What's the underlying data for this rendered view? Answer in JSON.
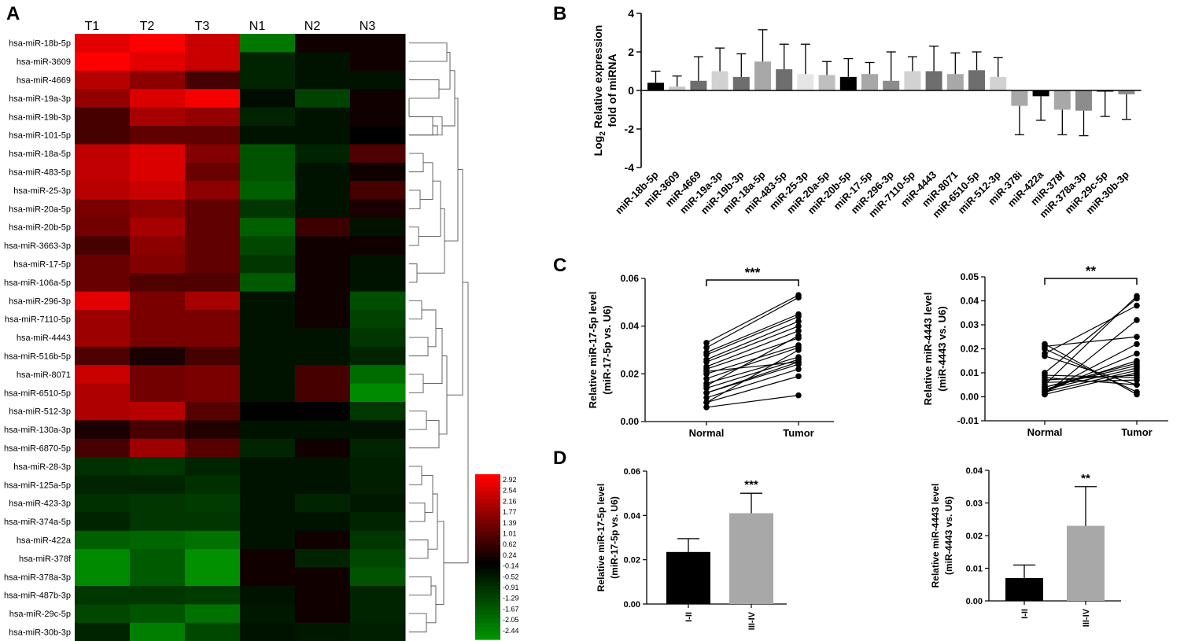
{
  "panel_labels": {
    "A": "A",
    "B": "B",
    "C": "C",
    "D": "D"
  },
  "chart_data": [
    {
      "panel": "A",
      "type": "heatmap",
      "columns": [
        "T1",
        "T2",
        "T3",
        "N1",
        "N2",
        "N3"
      ],
      "rows": [
        "hsa-miR-18b-5p",
        "hsa-miR-3609",
        "hsa-miR-4669",
        "hsa-miR-19a-3p",
        "hsa-miR-19b-3p",
        "hsa-miR-101-5p",
        "hsa-miR-18a-5p",
        "hsa-miR-483-5p",
        "hsa-miR-25-3p",
        "hsa-miR-20a-5p",
        "hsa-miR-20b-5p",
        "hsa-miR-3663-3p",
        "hsa-miR-17-5p",
        "hsa-miR-106a-5p",
        "hsa-miR-296-3p",
        "hsa-miR-7110-5p",
        "hsa-miR-4443",
        "hsa-miR-516b-5p",
        "hsa-miR-8071",
        "hsa-miR-6510-5p",
        "hsa-miR-512-3p",
        "hsa-miR-130a-3p",
        "hsa-miR-6870-5p",
        "hsa-miR-28-3p",
        "hsa-miR-125a-5p",
        "hsa-miR-423-3p",
        "hsa-miR-374a-5p",
        "hsa-miR-422a",
        "hsa-miR-378f",
        "hsa-miR-378a-3p",
        "hsa-miR-487b-3p",
        "hsa-miR-29c-5p",
        "hsa-miR-30b-3p"
      ],
      "values": [
        [
          2.6,
          2.9,
          2.3,
          -2.0,
          0.2,
          0.2
        ],
        [
          2.9,
          2.6,
          2.3,
          -0.6,
          -0.3,
          0.2
        ],
        [
          2.1,
          1.6,
          0.8,
          -0.6,
          -0.3,
          -0.3
        ],
        [
          1.7,
          2.5,
          2.8,
          -0.2,
          -1.1,
          0.2
        ],
        [
          0.8,
          1.9,
          1.7,
          -0.6,
          -0.3,
          0.2
        ],
        [
          0.8,
          1.1,
          1.1,
          -0.3,
          -0.3,
          0.0
        ],
        [
          2.2,
          2.5,
          1.5,
          -1.4,
          -0.6,
          0.9
        ],
        [
          2.2,
          2.5,
          1.2,
          -1.4,
          -0.3,
          0.2
        ],
        [
          2.1,
          2.3,
          1.6,
          -1.6,
          -0.3,
          0.8
        ],
        [
          1.4,
          1.6,
          1.1,
          -0.9,
          -0.3,
          0.3
        ],
        [
          1.3,
          1.9,
          1.1,
          -1.6,
          0.7,
          -0.3
        ],
        [
          0.8,
          1.6,
          1.1,
          -1.2,
          0.2,
          0.2
        ],
        [
          1.2,
          1.5,
          1.1,
          -0.9,
          0.2,
          -0.3
        ],
        [
          1.2,
          0.9,
          0.9,
          -1.5,
          0.2,
          -0.3
        ],
        [
          2.6,
          1.4,
          1.9,
          -0.3,
          0.2,
          -1.3
        ],
        [
          1.8,
          1.4,
          1.4,
          -0.3,
          0.2,
          -1.1
        ],
        [
          1.8,
          1.4,
          1.4,
          -0.3,
          -0.3,
          -0.9
        ],
        [
          0.9,
          0.3,
          0.8,
          -0.3,
          -0.3,
          -0.6
        ],
        [
          2.3,
          1.3,
          1.4,
          -0.3,
          0.8,
          -1.8
        ],
        [
          2.0,
          1.3,
          1.4,
          -0.3,
          0.8,
          -2.3
        ],
        [
          2.0,
          2.1,
          1.0,
          0.0,
          0.0,
          -0.9
        ],
        [
          0.3,
          0.8,
          0.4,
          -0.3,
          -0.3,
          -0.3
        ],
        [
          0.8,
          1.8,
          1.0,
          -0.6,
          0.2,
          -0.6
        ],
        [
          -0.8,
          -0.9,
          -0.6,
          -0.3,
          -0.3,
          -0.5
        ],
        [
          -0.6,
          -0.6,
          -0.8,
          -0.3,
          -0.3,
          -0.5
        ],
        [
          -0.8,
          -0.9,
          -1.0,
          -0.3,
          -0.6,
          -0.4
        ],
        [
          -0.6,
          -0.9,
          -0.9,
          -0.3,
          -0.3,
          -0.6
        ],
        [
          -1.6,
          -1.7,
          -1.9,
          -0.3,
          0.2,
          -0.9
        ],
        [
          -2.3,
          -1.5,
          -2.4,
          0.2,
          -0.6,
          -1.2
        ],
        [
          -2.3,
          -1.5,
          -2.4,
          0.2,
          0.2,
          -1.4
        ],
        [
          -0.9,
          -0.9,
          -1.0,
          -0.3,
          0.2,
          -0.6
        ],
        [
          -1.2,
          -1.4,
          -1.9,
          -0.4,
          0.2,
          -0.6
        ],
        [
          -0.6,
          -2.1,
          -1.2,
          -0.3,
          -0.4,
          -0.5
        ]
      ],
      "legend_ticks": [
        "2.92",
        "2.54",
        "2.16",
        "1.77",
        "1.39",
        "1.01",
        "0.62",
        "0.24",
        "-0.14",
        "-0.52",
        "-0.91",
        "-1.29",
        "-1.67",
        "-2.05",
        "-2.44"
      ],
      "colors": {
        "high": "#ff0000",
        "mid": "#000000",
        "low": "#00a000"
      }
    },
    {
      "panel": "B",
      "type": "bar",
      "ylabel_lines": [
        "Log2 Relative expression",
        "fold of miRNA"
      ],
      "ylabel_sub": "2",
      "ylim": [
        -4,
        4
      ],
      "yticks": [
        4,
        2,
        0,
        -2,
        -4
      ],
      "categories": [
        "miR-18b-5p",
        "miR-3609",
        "miR-4669",
        "miR-19a-3p",
        "miR-19b-3p",
        "miR-18a-5p",
        "miR-483-5p",
        "miR-25-3p",
        "miR-20a-5p",
        "miR-20b-5p",
        "miR-17-5p",
        "miR-296-3p",
        "miR-7110-5p",
        "miR-4443",
        "miR-8071",
        "miR-6510-5p",
        "miR-512-3p",
        "miR-378i",
        "miR-422a",
        "miR-378f",
        "miR-378a-3p",
        "miR-29c-5p",
        "miR-30b-3p"
      ],
      "values": [
        0.4,
        0.2,
        0.5,
        1.0,
        0.7,
        1.5,
        1.1,
        0.85,
        0.8,
        0.7,
        0.85,
        0.5,
        1.0,
        1.0,
        0.85,
        1.05,
        0.7,
        -0.8,
        -0.3,
        -1.0,
        -1.05,
        -0.05,
        -0.2
      ],
      "errors": [
        0.6,
        0.55,
        1.25,
        1.2,
        1.2,
        1.65,
        1.3,
        1.55,
        0.7,
        0.95,
        0.6,
        1.5,
        0.75,
        1.3,
        1.1,
        0.95,
        1.0,
        1.5,
        1.25,
        1.3,
        1.3,
        1.3,
        1.3
      ],
      "bar_colors": [
        "#000000",
        "#c8c8c8",
        "#6e6e6e",
        "#d2d2d2",
        "#6e6e6e",
        "#a8a8a8",
        "#6e6e6e",
        "#e6e6e6",
        "#bfbfbf",
        "#000000",
        "#a8a8a8",
        "#8c8c8c",
        "#d2d2d2",
        "#6e6e6e",
        "#a8a8a8",
        "#6e6e6e",
        "#d2d2d2",
        "#a8a8a8",
        "#000000",
        "#a8a8a8",
        "#8c8c8c",
        "#000000",
        "#8c8c8c"
      ]
    },
    {
      "panel": "C-left",
      "type": "line",
      "ylabel_lines": [
        "Relative miR-17-5p level",
        "(miR-17-5p vs. U6)"
      ],
      "xlabels": [
        "Normal",
        "Tumor"
      ],
      "ylim": [
        0,
        0.06
      ],
      "yticks": [
        "0.00",
        "0.02",
        "0.04",
        "0.06"
      ],
      "annotation": "***",
      "pairs": [
        [
          0.006,
          0.011
        ],
        [
          0.008,
          0.019
        ],
        [
          0.01,
          0.022
        ],
        [
          0.012,
          0.024
        ],
        [
          0.012,
          0.025
        ],
        [
          0.014,
          0.026
        ],
        [
          0.016,
          0.027
        ],
        [
          0.018,
          0.031
        ],
        [
          0.02,
          0.032
        ],
        [
          0.022,
          0.035
        ],
        [
          0.023,
          0.038
        ],
        [
          0.025,
          0.04
        ],
        [
          0.026,
          0.042
        ],
        [
          0.028,
          0.044
        ],
        [
          0.029,
          0.045
        ],
        [
          0.031,
          0.052
        ],
        [
          0.033,
          0.053
        ],
        [
          0.008,
          0.03
        ],
        [
          0.015,
          0.036
        ],
        [
          0.021,
          0.025
        ]
      ]
    },
    {
      "panel": "C-right",
      "type": "line",
      "ylabel_lines": [
        "Relative miR-4443 level",
        "(miR-4443 vs. U6)"
      ],
      "xlabels": [
        "Normal",
        "Tumor"
      ],
      "ylim": [
        -0.01,
        0.05
      ],
      "yticks": [
        "-0.01",
        "0.00",
        "0.01",
        "0.02",
        "0.03",
        "0.04",
        "0.05"
      ],
      "annotation": "**",
      "pairs": [
        [
          0.001,
          0.01
        ],
        [
          0.002,
          0.011
        ],
        [
          0.003,
          0.012
        ],
        [
          0.004,
          0.014
        ],
        [
          0.005,
          0.042
        ],
        [
          0.01,
          0.041
        ],
        [
          0.018,
          0.038
        ],
        [
          0.021,
          0.025
        ],
        [
          0.022,
          0.001
        ],
        [
          0.02,
          0.002
        ],
        [
          0.017,
          0.005
        ],
        [
          0.009,
          0.008
        ],
        [
          0.007,
          0.009
        ],
        [
          0.003,
          0.015
        ],
        [
          0.002,
          0.022
        ],
        [
          0.001,
          0.032
        ],
        [
          0.004,
          0.013
        ],
        [
          0.006,
          0.007
        ],
        [
          0.008,
          0.005
        ],
        [
          0.002,
          0.018
        ]
      ]
    },
    {
      "panel": "D-left",
      "type": "bar",
      "ylabel_lines": [
        "Relative miR-17-5p level",
        "(miR-17-5p vs. U6)"
      ],
      "categories": [
        "I-II",
        "III-IV"
      ],
      "values": [
        0.0235,
        0.041
      ],
      "errors": [
        0.006,
        0.009
      ],
      "bar_colors": [
        "#000000",
        "#a8a8a8"
      ],
      "ylim": [
        0,
        0.06
      ],
      "yticks": [
        "0.00",
        "0.02",
        "0.04",
        "0.06"
      ],
      "annotation": "***"
    },
    {
      "panel": "D-right",
      "type": "bar",
      "ylabel_lines": [
        "Relative miR-4443 level",
        "(miR-4443 vs. U6)"
      ],
      "categories": [
        "I-II",
        "III-IV"
      ],
      "values": [
        0.007,
        0.023
      ],
      "errors": [
        0.004,
        0.012
      ],
      "bar_colors": [
        "#000000",
        "#a8a8a8"
      ],
      "ylim": [
        0,
        0.04
      ],
      "yticks": [
        "0.00",
        "0.01",
        "0.02",
        "0.03",
        "0.04"
      ],
      "annotation": "**"
    }
  ]
}
